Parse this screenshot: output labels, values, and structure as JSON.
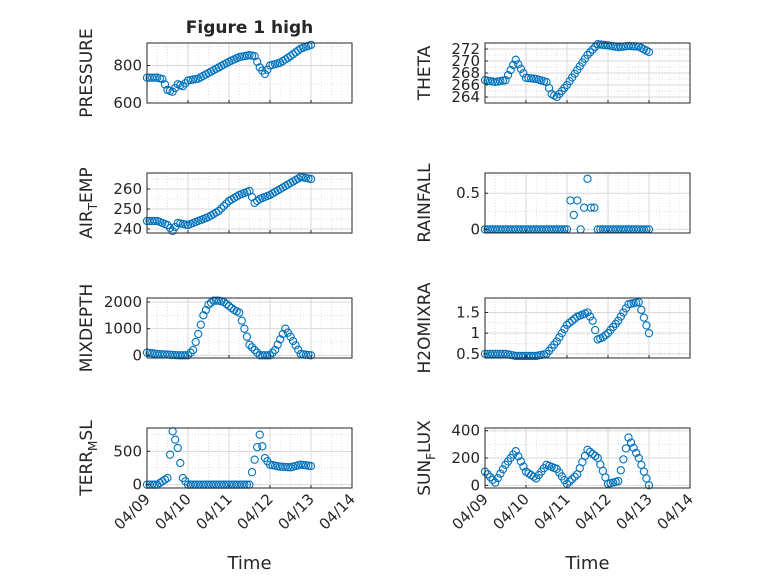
{
  "figure": {
    "title": "Figure 1 high"
  },
  "colors": {
    "marker": "#0072BD",
    "axis": "#262626",
    "grid": "#d9d9d9"
  },
  "chart_data": [
    {
      "type": "scatter",
      "ylabel": "PRESSURE",
      "ylabel_sub": "",
      "ylabel_tail": "",
      "xlabel": "",
      "title": "Figure 1 high",
      "ylim": [
        600,
        920
      ],
      "yticks": [
        600,
        800
      ],
      "x": [
        "04/09 00:00",
        "04/09 06:00",
        "04/09 09:00",
        "04/09 12:00",
        "04/09 15:00",
        "04/09 18:00",
        "04/09 21:00",
        "04/10 00:00",
        "04/10 06:00",
        "04/10 12:00",
        "04/10 18:00",
        "04/11 00:00",
        "04/11 06:00",
        "04/11 12:00",
        "04/11 15:00",
        "04/11 18:00",
        "04/11 21:00",
        "04/12 00:00",
        "04/12 06:00",
        "04/12 12:00",
        "04/12 18:00",
        "04/13 00:00"
      ],
      "y": [
        735,
        735,
        728,
        670,
        660,
        700,
        690,
        720,
        730,
        760,
        790,
        820,
        845,
        855,
        850,
        790,
        755,
        800,
        815,
        850,
        890,
        910
      ]
    },
    {
      "type": "scatter",
      "ylabel": "THETA",
      "ylabel_sub": "",
      "ylabel_tail": "",
      "xlabel": "",
      "ylim": [
        263,
        273
      ],
      "yticks": [
        264,
        266,
        268,
        270,
        272
      ],
      "x": [
        "04/09 00:00",
        "04/09 06:00",
        "04/09 12:00",
        "04/09 18:00",
        "04/10 00:00",
        "04/10 06:00",
        "04/10 12:00",
        "04/10 15:00",
        "04/10 18:00",
        "04/11 00:00",
        "04/11 06:00",
        "04/11 12:00",
        "04/11 18:00",
        "04/12 00:00",
        "04/12 06:00",
        "04/12 12:00",
        "04/12 18:00",
        "04/13 00:00"
      ],
      "y": [
        266.8,
        266.5,
        266.8,
        270.2,
        267.2,
        267.0,
        266.5,
        264.5,
        264.0,
        266.0,
        268.5,
        271.0,
        272.8,
        272.6,
        272.3,
        272.5,
        272.4,
        271.5
      ]
    },
    {
      "type": "scatter",
      "ylabel": "AIR",
      "ylabel_sub": "T",
      "ylabel_tail": "EMP",
      "xlabel": "",
      "ylim": [
        238,
        268
      ],
      "yticks": [
        240,
        250,
        260
      ],
      "x": [
        "04/09 00:00",
        "04/09 06:00",
        "04/09 12:00",
        "04/09 15:00",
        "04/09 18:00",
        "04/10 00:00",
        "04/10 06:00",
        "04/10 12:00",
        "04/10 18:00",
        "04/11 00:00",
        "04/11 06:00",
        "04/11 12:00",
        "04/11 15:00",
        "04/11 18:00",
        "04/12 00:00",
        "04/12 06:00",
        "04/12 12:00",
        "04/12 18:00",
        "04/13 00:00"
      ],
      "y": [
        244,
        244,
        242,
        239,
        243,
        242,
        244,
        246,
        249,
        254,
        257,
        259,
        253,
        255,
        257,
        260,
        263,
        266,
        265
      ]
    },
    {
      "type": "scatter",
      "ylabel": "RAINFALL",
      "ylabel_sub": "",
      "ylabel_tail": "",
      "xlabel": "",
      "ylim": [
        -0.05,
        0.78
      ],
      "yticks": [
        0,
        0.5
      ],
      "x": [
        "04/09 00:00",
        "04/09 12:00",
        "04/10 00:00",
        "04/10 12:00",
        "04/11 00:00",
        "04/11 02:00",
        "04/11 04:00",
        "04/11 06:00",
        "04/11 08:00",
        "04/11 10:00",
        "04/11 12:00",
        "04/11 14:00",
        "04/11 16:00",
        "04/11 18:00",
        "04/12 00:00",
        "04/12 12:00",
        "04/13 00:00"
      ],
      "y": [
        0,
        0,
        0,
        0,
        0,
        0.4,
        0.2,
        0.4,
        0.0,
        0.3,
        0.7,
        0.3,
        0.3,
        0,
        0,
        0,
        0
      ]
    },
    {
      "type": "scatter",
      "ylabel": "MIXDEPTH",
      "ylabel_sub": "",
      "ylabel_tail": "",
      "xlabel": "",
      "ylim": [
        -100,
        2150
      ],
      "yticks": [
        0,
        1000,
        2000
      ],
      "x": [
        "04/09 00:00",
        "04/09 06:00",
        "04/09 12:00",
        "04/09 18:00",
        "04/10 00:00",
        "04/10 03:00",
        "04/10 06:00",
        "04/10 09:00",
        "04/10 12:00",
        "04/10 15:00",
        "04/10 18:00",
        "04/10 21:00",
        "04/11 00:00",
        "04/11 03:00",
        "04/11 06:00",
        "04/11 12:00",
        "04/11 18:00",
        "04/12 00:00",
        "04/12 03:00",
        "04/12 06:00",
        "04/12 09:00",
        "04/12 12:00",
        "04/12 18:00",
        "04/13 00:00"
      ],
      "y": [
        100,
        50,
        30,
        0,
        0,
        200,
        800,
        1500,
        1900,
        2050,
        2050,
        2000,
        1850,
        1700,
        1600,
        400,
        0,
        0,
        200,
        600,
        1000,
        700,
        50,
        0
      ]
    },
    {
      "type": "scatter",
      "ylabel": "H2OMIXRA",
      "ylabel_sub": "",
      "ylabel_tail": "",
      "xlabel": "",
      "ylim": [
        0.4,
        1.85
      ],
      "yticks": [
        0.5,
        1,
        1.5
      ],
      "x": [
        "04/09 00:00",
        "04/09 06:00",
        "04/09 12:00",
        "04/09 18:00",
        "04/10 00:00",
        "04/10 06:00",
        "04/10 12:00",
        "04/10 18:00",
        "04/11 00:00",
        "04/11 06:00",
        "04/11 12:00",
        "04/11 15:00",
        "04/11 18:00",
        "04/11 21:00",
        "04/12 00:00",
        "04/12 06:00",
        "04/12 12:00",
        "04/12 18:00",
        "04/13 00:00"
      ],
      "y": [
        0.5,
        0.5,
        0.5,
        0.45,
        0.45,
        0.45,
        0.5,
        0.8,
        1.2,
        1.4,
        1.5,
        1.3,
        0.85,
        0.9,
        1.0,
        1.3,
        1.7,
        1.75,
        1.0
      ]
    },
    {
      "type": "scatter",
      "ylabel": "TERR",
      "ylabel_sub": "M",
      "ylabel_tail": "SL",
      "xlabel": "Time",
      "ylim": [
        -50,
        850
      ],
      "yticks": [
        0,
        500
      ],
      "xticklabels": [
        "04/09",
        "04/10",
        "04/11",
        "04/12",
        "04/13",
        "04/14"
      ],
      "x": [
        "04/09 00:00",
        "04/09 06:00",
        "04/09 12:00",
        "04/09 15:00",
        "04/09 18:00",
        "04/09 21:00",
        "04/10 00:00",
        "04/10 06:00",
        "04/10 12:00",
        "04/10 18:00",
        "04/11 00:00",
        "04/11 06:00",
        "04/11 12:00",
        "04/11 18:00",
        "04/11 21:00",
        "04/12 00:00",
        "04/12 06:00",
        "04/12 12:00",
        "04/12 18:00",
        "04/13 00:00"
      ],
      "y": [
        0,
        0,
        100,
        800,
        550,
        100,
        0,
        0,
        0,
        0,
        0,
        0,
        0,
        750,
        400,
        300,
        270,
        260,
        300,
        280
      ]
    },
    {
      "type": "scatter",
      "ylabel": "SUN",
      "ylabel_sub": "F",
      "ylabel_tail": "LUX",
      "xlabel": "Time",
      "ylim": [
        -20,
        420
      ],
      "yticks": [
        0,
        200,
        400
      ],
      "xticklabels": [
        "04/09",
        "04/10",
        "04/11",
        "04/12",
        "04/13",
        "04/14"
      ],
      "x": [
        "04/09 00:00",
        "04/09 06:00",
        "04/09 12:00",
        "04/09 18:00",
        "04/10 00:00",
        "04/10 06:00",
        "04/10 12:00",
        "04/10 18:00",
        "04/11 00:00",
        "04/11 06:00",
        "04/11 12:00",
        "04/11 18:00",
        "04/12 00:00",
        "04/12 06:00",
        "04/12 12:00",
        "04/12 18:00",
        "04/13 00:00"
      ],
      "y": [
        100,
        20,
        150,
        250,
        100,
        50,
        150,
        120,
        10,
        80,
        260,
        200,
        10,
        30,
        350,
        200,
        0
      ]
    }
  ]
}
